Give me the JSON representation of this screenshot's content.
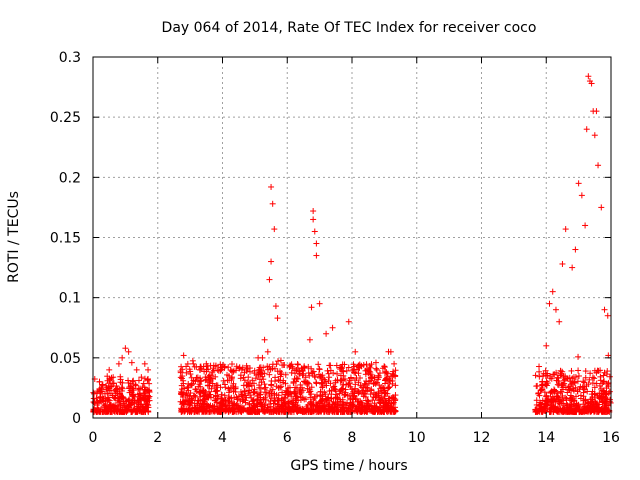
{
  "chart_data": {
    "type": "scatter",
    "title": "Day 064 of 2014, Rate Of TEC Index for receiver coco",
    "xlabel": "GPS time / hours",
    "ylabel": "ROTI / TECUs",
    "xlim": [
      0,
      16
    ],
    "ylim": [
      0,
      0.3
    ],
    "xticks": [
      0,
      2,
      4,
      6,
      8,
      10,
      12,
      14,
      16
    ],
    "yticks": [
      0,
      0.05,
      0.1,
      0.15,
      0.2,
      0.25,
      0.3
    ],
    "xtick_labels": [
      "0",
      "2",
      "4",
      "6",
      "8",
      "10",
      "12",
      "14",
      "16"
    ],
    "ytick_labels": [
      "0",
      "0.05",
      "0.1",
      "0.15",
      "0.2",
      "0.25",
      "0.3"
    ],
    "grid": true,
    "marker": "+",
    "color": "#ff0000",
    "data_segments": [
      {
        "x_start": 0.0,
        "x_end": 1.75,
        "base_max": 0.03
      },
      {
        "x_start": 2.7,
        "x_end": 9.35,
        "base_max": 0.04
      },
      {
        "x_start": 13.65,
        "x_end": 16.0,
        "base_max": 0.035
      }
    ],
    "series": [
      {
        "name": "ROTI",
        "x": [
          0.2,
          0.5,
          0.8,
          0.9,
          1.0,
          1.1,
          1.2,
          1.35,
          1.6,
          1.7,
          2.8,
          3.1,
          3.3,
          3.5,
          4.2,
          4.6,
          5.1,
          5.3,
          5.4,
          5.45,
          5.5,
          5.5,
          5.55,
          5.6,
          5.65,
          5.7,
          6.7,
          6.75,
          6.8,
          6.8,
          6.85,
          6.9,
          6.9,
          7.0,
          7.2,
          7.4,
          7.9,
          8.1,
          9.2,
          9.3,
          13.9,
          14.0,
          14.1,
          14.2,
          14.3,
          14.4,
          14.5,
          14.6,
          14.8,
          14.9,
          15.0,
          15.1,
          15.2,
          15.25,
          15.3,
          15.35,
          15.4,
          15.45,
          15.5,
          15.55,
          15.6,
          15.7,
          15.8,
          15.9
        ],
        "y": [
          0.03,
          0.04,
          0.045,
          0.05,
          0.058,
          0.055,
          0.046,
          0.04,
          0.045,
          0.04,
          0.052,
          0.045,
          0.04,
          0.045,
          0.035,
          0.04,
          0.05,
          0.065,
          0.055,
          0.115,
          0.13,
          0.192,
          0.178,
          0.157,
          0.093,
          0.083,
          0.065,
          0.092,
          0.172,
          0.165,
          0.155,
          0.145,
          0.135,
          0.095,
          0.07,
          0.075,
          0.08,
          0.055,
          0.055,
          0.045,
          0.035,
          0.06,
          0.095,
          0.105,
          0.09,
          0.08,
          0.128,
          0.157,
          0.125,
          0.14,
          0.195,
          0.185,
          0.16,
          0.24,
          0.284,
          0.28,
          0.278,
          0.255,
          0.235,
          0.255,
          0.21,
          0.175,
          0.09,
          0.085
        ]
      }
    ]
  }
}
